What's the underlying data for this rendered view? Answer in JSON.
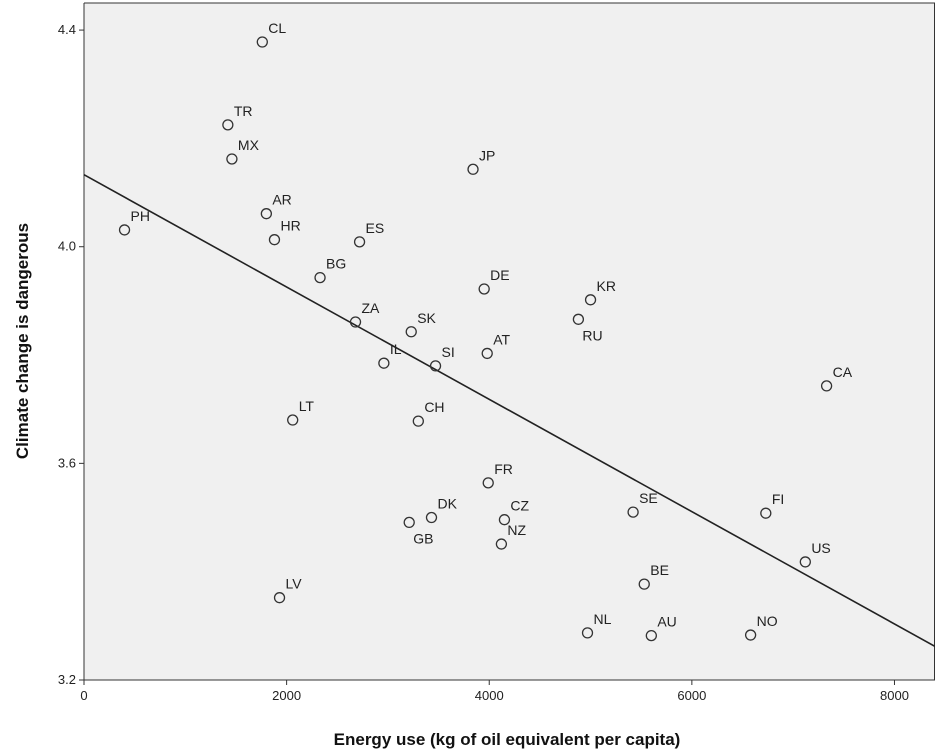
{
  "chart_data": {
    "type": "scatter",
    "title": "",
    "xlabel": "Energy use (kg of oil equivalent per capita)",
    "ylabel": "Climate change is dangerous",
    "xlim": [
      0,
      8400
    ],
    "ylim": [
      3.2,
      4.45
    ],
    "x_ticks": [
      0,
      2000,
      4000,
      6000,
      8000
    ],
    "x_tick_labels": [
      "0",
      "2000",
      "4000",
      "6000",
      "8000"
    ],
    "y_ticks": [
      3.2,
      3.6,
      4.0,
      4.4
    ],
    "y_tick_labels": [
      "3.2",
      "3.6",
      "4.0",
      "4.4"
    ],
    "grid": false,
    "background": "#f0f0f0",
    "marker": "open-circle",
    "fit_line": {
      "type": "linear",
      "x": [
        0,
        8400
      ],
      "y": [
        4.133,
        3.262
      ]
    },
    "points": [
      {
        "label": "CL",
        "x": 1760,
        "y": 4.378,
        "label_pos": "above-right"
      },
      {
        "label": "TR",
        "x": 1420,
        "y": 4.225,
        "label_pos": "above-right"
      },
      {
        "label": "MX",
        "x": 1460,
        "y": 4.162,
        "label_pos": "above-right"
      },
      {
        "label": "JP",
        "x": 3840,
        "y": 4.143,
        "label_pos": "above-right"
      },
      {
        "label": "AR",
        "x": 1800,
        "y": 4.061,
        "label_pos": "above-right"
      },
      {
        "label": "PH",
        "x": 400,
        "y": 4.031,
        "label_pos": "above-right"
      },
      {
        "label": "HR",
        "x": 1880,
        "y": 4.013,
        "label_pos": "above-right"
      },
      {
        "label": "ES",
        "x": 2720,
        "y": 4.009,
        "label_pos": "above-right"
      },
      {
        "label": "BG",
        "x": 2330,
        "y": 3.943,
        "label_pos": "above-right"
      },
      {
        "label": "DE",
        "x": 3950,
        "y": 3.922,
        "label_pos": "above-right"
      },
      {
        "label": "KR",
        "x": 5000,
        "y": 3.902,
        "label_pos": "above-right"
      },
      {
        "label": "RU",
        "x": 4880,
        "y": 3.866,
        "label_pos": "below-right"
      },
      {
        "label": "ZA",
        "x": 2680,
        "y": 3.861,
        "label_pos": "above-right"
      },
      {
        "label": "SK",
        "x": 3230,
        "y": 3.843,
        "label_pos": "above-right"
      },
      {
        "label": "AT",
        "x": 3980,
        "y": 3.803,
        "label_pos": "above-right"
      },
      {
        "label": "IL",
        "x": 2960,
        "y": 3.785,
        "label_pos": "above-right"
      },
      {
        "label": "SI",
        "x": 3470,
        "y": 3.78,
        "label_pos": "above-right"
      },
      {
        "label": "CA",
        "x": 7330,
        "y": 3.743,
        "label_pos": "above-right"
      },
      {
        "label": "LT",
        "x": 2060,
        "y": 3.68,
        "label_pos": "above-right"
      },
      {
        "label": "CH",
        "x": 3300,
        "y": 3.678,
        "label_pos": "above-right"
      },
      {
        "label": "FR",
        "x": 3990,
        "y": 3.564,
        "label_pos": "above-right"
      },
      {
        "label": "SE",
        "x": 5420,
        "y": 3.51,
        "label_pos": "above-right"
      },
      {
        "label": "FI",
        "x": 6730,
        "y": 3.508,
        "label_pos": "above-right"
      },
      {
        "label": "DK",
        "x": 3430,
        "y": 3.5,
        "label_pos": "above-right"
      },
      {
        "label": "CZ",
        "x": 4150,
        "y": 3.496,
        "label_pos": "above-right"
      },
      {
        "label": "GB",
        "x": 3210,
        "y": 3.491,
        "label_pos": "below-right"
      },
      {
        "label": "NZ",
        "x": 4120,
        "y": 3.451,
        "label_pos": "above-right"
      },
      {
        "label": "US",
        "x": 7120,
        "y": 3.418,
        "label_pos": "above-right"
      },
      {
        "label": "BE",
        "x": 5530,
        "y": 3.377,
        "label_pos": "above-right"
      },
      {
        "label": "LV",
        "x": 1930,
        "y": 3.352,
        "label_pos": "above-right"
      },
      {
        "label": "NL",
        "x": 4970,
        "y": 3.287,
        "label_pos": "above-right"
      },
      {
        "label": "AU",
        "x": 5600,
        "y": 3.282,
        "label_pos": "above-right"
      },
      {
        "label": "NO",
        "x": 6580,
        "y": 3.283,
        "label_pos": "above-right"
      }
    ]
  }
}
